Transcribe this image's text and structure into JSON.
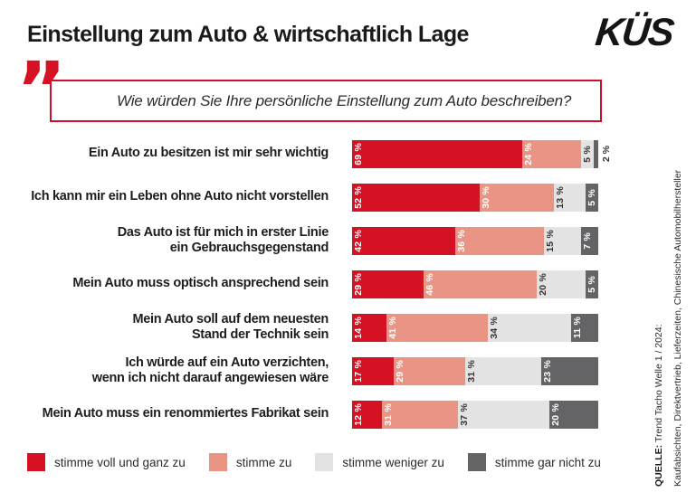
{
  "header": {
    "title": "Einstellung zum Auto & wirtschaftlich Lage",
    "logo": "KÜS"
  },
  "question": "Wie würden Sie Ihre persönliche Einstellung zum Auto beschreiben?",
  "quote_glyph": "”",
  "chart_data": {
    "type": "bar",
    "stacked": true,
    "orientation": "horizontal",
    "unit": "%",
    "xlim": [
      0,
      100
    ],
    "categories": [
      "Ein Auto zu besitzen ist mir sehr wichtig",
      "Ich kann mir ein Leben ohne Auto nicht vorstellen",
      "Das Auto ist für mich in erster Linie\nein Gebrauchsgegenstand",
      "Mein Auto muss optisch ansprechend sein",
      "Mein Auto soll auf dem neuesten\nStand der Technik sein",
      "Ich würde auf ein Auto verzichten,\nwenn ich nicht darauf angewiesen wäre",
      "Mein Auto muss ein renommiertes Fabrikat sein"
    ],
    "series": [
      {
        "name": "stimme voll und ganz zu",
        "color": "#d51224",
        "label_color": "#ffffff",
        "values": [
          69,
          52,
          42,
          29,
          14,
          17,
          12
        ]
      },
      {
        "name": "stimme zu",
        "color": "#ea9486",
        "label_color": "#ffffff",
        "values": [
          24,
          30,
          36,
          46,
          41,
          29,
          31
        ]
      },
      {
        "name": "stimme weniger zu",
        "color": "#e3e3e3",
        "label_color": "#333333",
        "values": [
          5,
          13,
          15,
          20,
          34,
          31,
          37
        ]
      },
      {
        "name": "stimme gar nicht zu",
        "color": "#646365",
        "label_color": "#ffffff",
        "values": [
          2,
          5,
          7,
          5,
          11,
          23,
          20
        ]
      }
    ]
  },
  "value_suffix": " %",
  "source": {
    "prefix": "QUELLE:",
    "line1": "Trend Tacho Welle 1 / 2024:",
    "line2": "Kaufabsichten, Direktvertrieb, Lieferzeiten, Chinesische Automobilhersteller"
  }
}
